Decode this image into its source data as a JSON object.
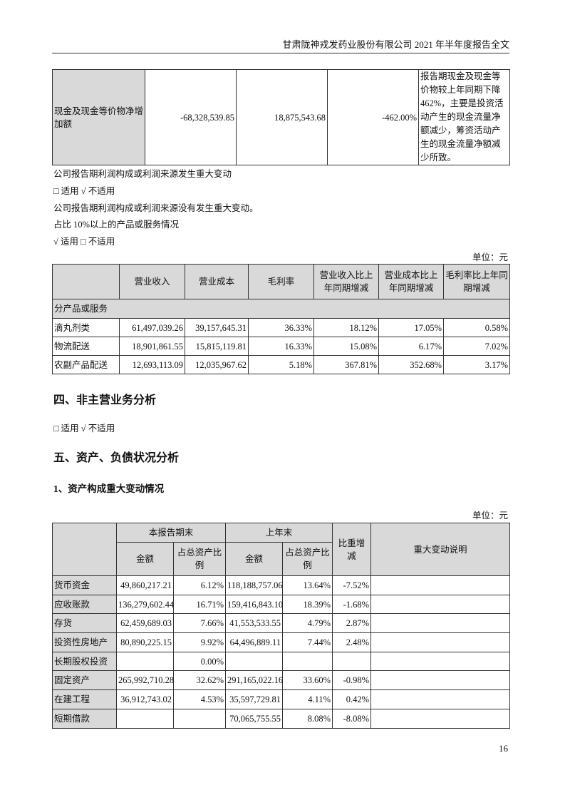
{
  "header": {
    "title": "甘肃陇神戎发药业股份有限公司 2021 年半年度报告全文"
  },
  "cash_table": {
    "row": {
      "label": "现金及现金等价物净增加额",
      "current": "-68,328,539.85",
      "prior": "18,875,543.68",
      "change": "-462.00%",
      "reason": "报告期现金及现金等价物较上年同期下降462%，主要是投资活动产生的现金流量净额减少，筹资活动产生的现金流量净额减少所致。"
    }
  },
  "text": {
    "profit_change": "公司报告期利润构成或利润来源发生重大变动",
    "applicable1": "□ 适用 √ 不适用",
    "profit_no_change": "公司报告期利润构成或利润来源没有发生重大变动。",
    "products_title": "占比 10%以上的产品或服务情况",
    "applicable2": "√ 适用 □ 不适用",
    "unit1": "单位：元",
    "section4": "四、非主营业务分析",
    "applicable3": "□ 适用 √ 不适用",
    "section5": "五、资产、负债状况分析",
    "subsection1": "1、资产构成重大变动情况",
    "unit2": "单位：元"
  },
  "product_table": {
    "headers": [
      "",
      "营业收入",
      "营业成本",
      "毛利率",
      "营业收入比上年同期增减",
      "营业成本比上年同期增减",
      "毛利率比上年同期增减"
    ],
    "group_label": "分产品或服务",
    "rows": [
      [
        "滴丸剂类",
        "61,497,039.26",
        "39,157,645.31",
        "36.33%",
        "18.12%",
        "17.05%",
        "0.58%"
      ],
      [
        "物流配送",
        "18,901,861.55",
        "15,815,119.81",
        "16.33%",
        "15.08%",
        "6.17%",
        "7.02%"
      ],
      [
        "农副产品配送",
        "12,693,113.09",
        "12,035,967.62",
        "5.18%",
        "367.81%",
        "352.68%",
        "3.17%"
      ]
    ]
  },
  "asset_table": {
    "group_headers": [
      "本报告期末",
      "上年末",
      "比重增减",
      "重大变动说明"
    ],
    "sub_headers": [
      "金额",
      "占总资产比例",
      "金额",
      "占总资产比例"
    ],
    "rows": [
      [
        "货币资金",
        "49,860,217.21",
        "6.12%",
        "118,188,757.06",
        "13.64%",
        "-7.52%",
        ""
      ],
      [
        "应收账款",
        "136,279,602.44",
        "16.71%",
        "159,416,843.10",
        "18.39%",
        "-1.68%",
        ""
      ],
      [
        "存货",
        "62,459,689.03",
        "7.66%",
        "41,553,533.55",
        "4.79%",
        "2.87%",
        ""
      ],
      [
        "投资性房地产",
        "80,890,225.15",
        "9.92%",
        "64,496,889.11",
        "7.44%",
        "2.48%",
        ""
      ],
      [
        "长期股权投资",
        "",
        "0.00%",
        "",
        "",
        "",
        ""
      ],
      [
        "固定资产",
        "265,992,710.28",
        "32.62%",
        "291,165,022.16",
        "33.60%",
        "-0.98%",
        ""
      ],
      [
        "在建工程",
        "36,912,743.02",
        "4.53%",
        "35,597,729.81",
        "4.11%",
        "0.42%",
        ""
      ],
      [
        "短期借款",
        "",
        "",
        "70,065,755.55",
        "8.08%",
        "-8.08%",
        ""
      ]
    ]
  },
  "footer": {
    "page_number": "16"
  }
}
